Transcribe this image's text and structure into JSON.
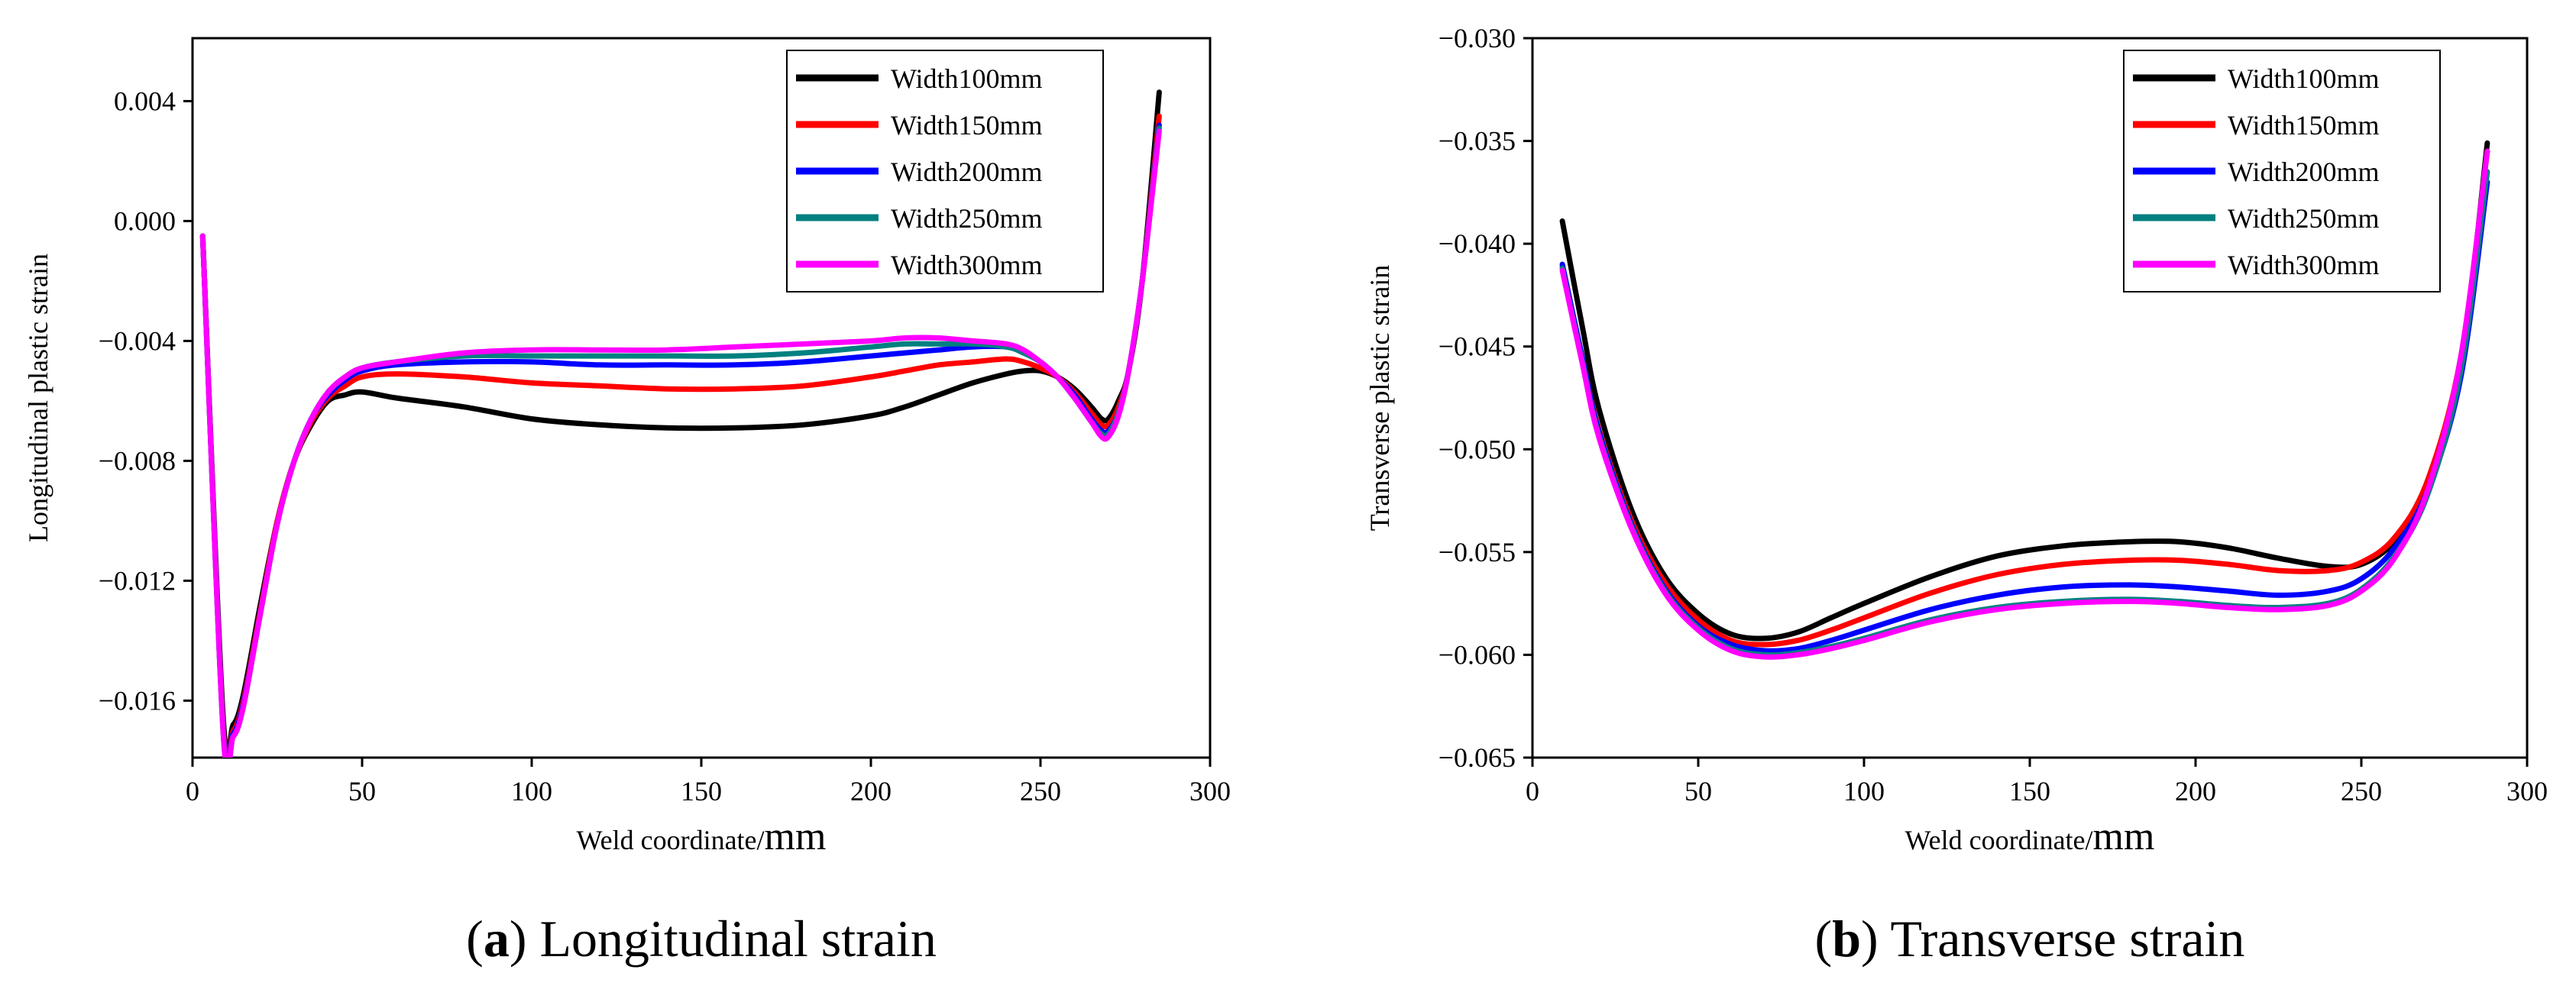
{
  "figure": {
    "panel_a_caption": {
      "prefix": "(",
      "letter": "a",
      "suffix": ") Longitudinal strain"
    },
    "panel_b_caption": {
      "prefix": "(",
      "letter": "b",
      "suffix": ") Transverse strain"
    }
  },
  "chart_data": [
    {
      "type": "line",
      "title": "",
      "xlabel": "Weld coordinate/",
      "xlabel_unit": "mm",
      "ylabel": "Longitudinal plastic strain",
      "xlim": [
        0,
        300
      ],
      "ylim": [
        -0.0179,
        0.0061
      ],
      "xticks": [
        0,
        50,
        100,
        150,
        200,
        250,
        300
      ],
      "xtick_labels": [
        "0",
        "50",
        "100",
        "150",
        "200",
        "250",
        "300"
      ],
      "yticks": [
        0.004,
        0.0,
        -0.004,
        -0.008,
        -0.012,
        -0.016
      ],
      "ytick_labels": [
        "0.004",
        "0.000",
        "−0.004",
        "−0.008",
        "−0.012",
        "−0.016"
      ],
      "legend_position": "top-right",
      "grid": false,
      "series": [
        {
          "name": "Width100mm",
          "color": "#000000",
          "x": [
            3,
            9,
            12,
            15,
            20,
            25,
            30,
            35,
            40,
            45,
            50,
            60,
            80,
            100,
            120,
            140,
            160,
            180,
            200,
            210,
            220,
            230,
            240,
            245,
            250,
            255,
            260,
            265,
            268,
            270,
            273,
            276,
            280,
            285
          ],
          "y": [
            -0.0005,
            -0.0165,
            -0.0168,
            -0.0158,
            -0.0128,
            -0.01,
            -0.008,
            -0.0068,
            -0.006,
            -0.0058,
            -0.0057,
            -0.0059,
            -0.0062,
            -0.0066,
            -0.0068,
            -0.0069,
            -0.0069,
            -0.0068,
            -0.0065,
            -0.0062,
            -0.0058,
            -0.0054,
            -0.0051,
            -0.005,
            -0.005,
            -0.0052,
            -0.0056,
            -0.0062,
            -0.0066,
            -0.0066,
            -0.006,
            -0.005,
            -0.002,
            0.0043
          ]
        },
        {
          "name": "Width150mm",
          "color": "#ff0000",
          "x": [
            3,
            9,
            12,
            15,
            20,
            25,
            30,
            35,
            40,
            45,
            50,
            60,
            80,
            100,
            120,
            140,
            160,
            180,
            200,
            210,
            220,
            230,
            240,
            245,
            250,
            255,
            260,
            265,
            268,
            270,
            273,
            276,
            280,
            285
          ],
          "y": [
            -0.0005,
            -0.0168,
            -0.017,
            -0.016,
            -0.013,
            -0.01,
            -0.008,
            -0.0067,
            -0.0059,
            -0.0055,
            -0.0052,
            -0.0051,
            -0.0052,
            -0.0054,
            -0.0055,
            -0.0056,
            -0.0056,
            -0.0055,
            -0.0052,
            -0.005,
            -0.0048,
            -0.0047,
            -0.0046,
            -0.0047,
            -0.0049,
            -0.0052,
            -0.0057,
            -0.0064,
            -0.0068,
            -0.0068,
            -0.0062,
            -0.005,
            -0.002,
            0.0035
          ]
        },
        {
          "name": "Width200mm",
          "color": "#0000ff",
          "x": [
            3,
            9,
            12,
            15,
            20,
            25,
            30,
            35,
            40,
            45,
            50,
            60,
            80,
            100,
            120,
            140,
            160,
            180,
            200,
            210,
            220,
            230,
            240,
            245,
            250,
            255,
            260,
            265,
            268,
            270,
            273,
            276,
            280,
            285
          ],
          "y": [
            -0.0005,
            -0.0169,
            -0.0171,
            -0.0161,
            -0.0131,
            -0.0101,
            -0.008,
            -0.0066,
            -0.0058,
            -0.0053,
            -0.005,
            -0.0048,
            -0.0047,
            -0.0047,
            -0.0048,
            -0.0048,
            -0.0048,
            -0.0047,
            -0.0045,
            -0.0044,
            -0.0043,
            -0.0042,
            -0.0042,
            -0.0044,
            -0.0047,
            -0.0052,
            -0.0058,
            -0.0066,
            -0.007,
            -0.007,
            -0.0064,
            -0.005,
            -0.002,
            0.0032
          ]
        },
        {
          "name": "Width250mm",
          "color": "#008080",
          "x": [
            3,
            9,
            12,
            15,
            20,
            25,
            30,
            35,
            40,
            45,
            50,
            60,
            80,
            100,
            120,
            140,
            160,
            180,
            200,
            210,
            220,
            230,
            240,
            245,
            250,
            255,
            260,
            265,
            268,
            270,
            273,
            276,
            280,
            285
          ],
          "y": [
            -0.0005,
            -0.017,
            -0.0172,
            -0.0162,
            -0.0131,
            -0.0101,
            -0.008,
            -0.0066,
            -0.0057,
            -0.0052,
            -0.0049,
            -0.0047,
            -0.0045,
            -0.0045,
            -0.0045,
            -0.0045,
            -0.0045,
            -0.0044,
            -0.0042,
            -0.0041,
            -0.0041,
            -0.0041,
            -0.0042,
            -0.0044,
            -0.0047,
            -0.0052,
            -0.0059,
            -0.0067,
            -0.0071,
            -0.0071,
            -0.0064,
            -0.005,
            -0.002,
            0.0031
          ]
        },
        {
          "name": "Width300mm",
          "color": "#ff00ff",
          "x": [
            3,
            9,
            12,
            15,
            20,
            25,
            30,
            35,
            40,
            45,
            50,
            60,
            80,
            100,
            120,
            140,
            160,
            180,
            200,
            210,
            220,
            230,
            240,
            245,
            250,
            255,
            260,
            265,
            268,
            270,
            273,
            276,
            280,
            285
          ],
          "y": [
            -0.0005,
            -0.017,
            -0.0172,
            -0.0162,
            -0.0131,
            -0.0101,
            -0.008,
            -0.0066,
            -0.0057,
            -0.0052,
            -0.0049,
            -0.0047,
            -0.0044,
            -0.0043,
            -0.0043,
            -0.0043,
            -0.0042,
            -0.0041,
            -0.004,
            -0.0039,
            -0.0039,
            -0.004,
            -0.0041,
            -0.0043,
            -0.0047,
            -0.0052,
            -0.0059,
            -0.0067,
            -0.0072,
            -0.0072,
            -0.0065,
            -0.005,
            -0.002,
            0.003
          ]
        }
      ]
    },
    {
      "type": "line",
      "title": "",
      "xlabel": "Weld coordinate/",
      "xlabel_unit": "mm",
      "ylabel": "Transverse plastic strain",
      "xlim": [
        0,
        300
      ],
      "ylim": [
        -0.065,
        -0.03
      ],
      "xticks": [
        0,
        50,
        100,
        150,
        200,
        250,
        300
      ],
      "xtick_labels": [
        "0",
        "50",
        "100",
        "150",
        "200",
        "250",
        "300"
      ],
      "yticks": [
        -0.03,
        -0.035,
        -0.04,
        -0.045,
        -0.05,
        -0.055,
        -0.06,
        -0.065
      ],
      "ytick_labels": [
        "−0.030",
        "−0.035",
        "−0.040",
        "−0.045",
        "−0.050",
        "−0.055",
        "−0.060",
        "−0.065"
      ],
      "legend_position": "top-right",
      "grid": false,
      "series": [
        {
          "name": "Width100mm",
          "color": "#000000",
          "x": [
            9,
            15,
            20,
            30,
            40,
            50,
            60,
            70,
            80,
            90,
            100,
            120,
            140,
            160,
            180,
            195,
            210,
            225,
            240,
            250,
            260,
            270,
            280,
            288
          ],
          "y": [
            -0.0389,
            -0.044,
            -0.048,
            -0.053,
            -0.0562,
            -0.058,
            -0.059,
            -0.0592,
            -0.0589,
            -0.0582,
            -0.0575,
            -0.0562,
            -0.0552,
            -0.0547,
            -0.0545,
            -0.0545,
            -0.0548,
            -0.0553,
            -0.0557,
            -0.0556,
            -0.0545,
            -0.052,
            -0.046,
            -0.0351
          ]
        },
        {
          "name": "Width150mm",
          "color": "#ff0000",
          "x": [
            9,
            15,
            20,
            30,
            40,
            50,
            60,
            70,
            80,
            90,
            100,
            120,
            140,
            160,
            180,
            195,
            210,
            225,
            240,
            250,
            260,
            270,
            280,
            288
          ],
          "y": [
            -0.0411,
            -0.0455,
            -0.049,
            -0.0535,
            -0.0565,
            -0.0583,
            -0.0593,
            -0.0595,
            -0.0593,
            -0.0588,
            -0.0582,
            -0.057,
            -0.0561,
            -0.0556,
            -0.0554,
            -0.0554,
            -0.0556,
            -0.0559,
            -0.0559,
            -0.0555,
            -0.0543,
            -0.0515,
            -0.0455,
            -0.0355
          ]
        },
        {
          "name": "Width200mm",
          "color": "#0000ff",
          "x": [
            9,
            15,
            20,
            30,
            40,
            50,
            60,
            70,
            80,
            90,
            100,
            120,
            140,
            160,
            180,
            195,
            210,
            225,
            240,
            250,
            260,
            270,
            280,
            288
          ],
          "y": [
            -0.041,
            -0.0455,
            -0.0491,
            -0.0537,
            -0.0568,
            -0.0586,
            -0.0595,
            -0.0598,
            -0.0597,
            -0.0593,
            -0.0588,
            -0.0578,
            -0.0571,
            -0.0567,
            -0.0566,
            -0.0567,
            -0.0569,
            -0.0571,
            -0.0569,
            -0.0563,
            -0.0548,
            -0.052,
            -0.0465,
            -0.037
          ]
        },
        {
          "name": "Width250mm",
          "color": "#008080",
          "x": [
            9,
            15,
            20,
            30,
            40,
            50,
            60,
            70,
            80,
            90,
            100,
            120,
            140,
            160,
            180,
            195,
            210,
            225,
            240,
            250,
            260,
            270,
            280,
            288
          ],
          "y": [
            -0.0412,
            -0.0457,
            -0.0493,
            -0.0538,
            -0.0569,
            -0.0587,
            -0.0597,
            -0.06,
            -0.0599,
            -0.0596,
            -0.0592,
            -0.0583,
            -0.0577,
            -0.0574,
            -0.0573,
            -0.0574,
            -0.0576,
            -0.0577,
            -0.0575,
            -0.0568,
            -0.0552,
            -0.0522,
            -0.0462,
            -0.0365
          ]
        },
        {
          "name": "Width300mm",
          "color": "#ff00ff",
          "x": [
            9,
            15,
            20,
            30,
            40,
            50,
            60,
            70,
            80,
            90,
            100,
            120,
            140,
            160,
            180,
            195,
            210,
            225,
            240,
            250,
            260,
            270,
            280,
            288
          ],
          "y": [
            -0.0413,
            -0.0458,
            -0.0494,
            -0.0539,
            -0.057,
            -0.0588,
            -0.0598,
            -0.0601,
            -0.06,
            -0.0597,
            -0.0593,
            -0.0584,
            -0.0578,
            -0.0575,
            -0.0574,
            -0.0575,
            -0.0577,
            -0.0578,
            -0.0576,
            -0.0569,
            -0.0553,
            -0.052,
            -0.0455,
            -0.0355
          ]
        }
      ]
    }
  ]
}
